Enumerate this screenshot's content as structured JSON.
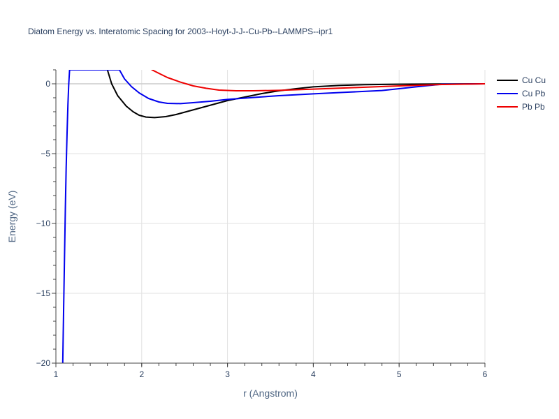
{
  "chart_data": {
    "type": "line",
    "title": "Diatom Energy vs. Interatomic Spacing for 2003--Hoyt-J-J--Cu-Pb--LAMMPS--ipr1",
    "xlabel": "r (Angstrom)",
    "ylabel": "Energy (eV)",
    "xlim": [
      1,
      6
    ],
    "ylim": [
      -20,
      1
    ],
    "xticks": [
      1,
      2,
      3,
      4,
      5,
      6
    ],
    "yticks": [
      0,
      -5,
      -10,
      -15,
      -20
    ],
    "xtick_labels": [
      "1",
      "2",
      "3",
      "4",
      "5",
      "6"
    ],
    "ytick_labels": [
      "0",
      "−5",
      "−10",
      "−15",
      "−20"
    ],
    "grid": true,
    "legend_position": "top-right",
    "series": [
      {
        "name": "Cu Cu",
        "color": "#000000",
        "x": [
          1.6,
          1.65,
          1.72,
          1.82,
          1.9,
          1.97,
          2.05,
          2.15,
          2.28,
          2.4,
          2.55,
          2.7,
          2.85,
          3.0,
          3.2,
          3.4,
          3.6,
          3.8,
          4.0,
          4.3,
          4.6,
          5.0,
          5.5,
          6.0
        ],
        "y": [
          1.0,
          0.0,
          -0.85,
          -1.6,
          -2.0,
          -2.25,
          -2.38,
          -2.42,
          -2.35,
          -2.2,
          -1.95,
          -1.7,
          -1.45,
          -1.2,
          -0.95,
          -0.7,
          -0.5,
          -0.35,
          -0.22,
          -0.12,
          -0.06,
          -0.03,
          -0.01,
          0.0
        ]
      },
      {
        "name": "Cu Pb",
        "color": "#0000ee",
        "x": [
          1.08,
          1.09,
          1.1,
          1.11,
          1.12,
          1.13,
          1.14,
          1.15,
          1.16,
          1.74,
          1.8,
          1.88,
          1.97,
          2.08,
          2.2,
          2.3,
          2.45,
          2.6,
          2.8,
          3.0,
          3.3,
          3.6,
          4.0,
          4.4,
          4.8,
          5.0,
          5.3,
          5.5,
          6.0
        ],
        "y": [
          -20.0,
          -16.0,
          -12.5,
          -9.0,
          -6.0,
          -3.5,
          -1.5,
          0.0,
          1.0,
          1.0,
          0.35,
          -0.2,
          -0.65,
          -1.05,
          -1.3,
          -1.4,
          -1.42,
          -1.35,
          -1.25,
          -1.12,
          -0.98,
          -0.85,
          -0.72,
          -0.6,
          -0.48,
          -0.35,
          -0.15,
          -0.03,
          0.0
        ]
      },
      {
        "name": "Pb Pb",
        "color": "#ee0000",
        "x": [
          2.12,
          2.2,
          2.3,
          2.45,
          2.6,
          2.75,
          2.9,
          3.1,
          3.3,
          3.6,
          4.0,
          4.5,
          5.0,
          5.5,
          6.0
        ],
        "y": [
          1.0,
          0.75,
          0.45,
          0.12,
          -0.15,
          -0.32,
          -0.45,
          -0.5,
          -0.5,
          -0.47,
          -0.38,
          -0.27,
          -0.15,
          -0.05,
          0.0
        ]
      }
    ]
  }
}
